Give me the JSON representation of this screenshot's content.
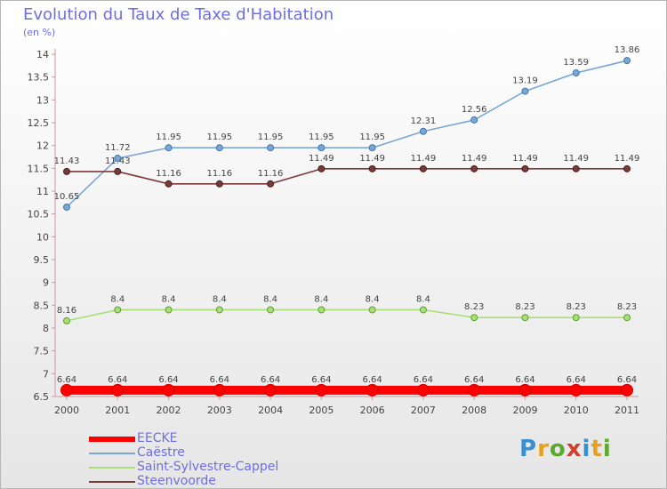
{
  "chart_data": {
    "type": "line",
    "title": "Evolution du Taux de Taxe d'Habitation",
    "subtitle": "(en %)",
    "x": [
      "2000",
      "2001",
      "2002",
      "2003",
      "2004",
      "2005",
      "2006",
      "2007",
      "2008",
      "2009",
      "2010",
      "2011"
    ],
    "ylim": [
      6.5,
      14
    ],
    "yticks": [
      "6.5",
      "7",
      "7.5",
      "8",
      "8.5",
      "9",
      "9.5",
      "10",
      "10.5",
      "11",
      "11.5",
      "12",
      "12.5",
      "13",
      "13.5",
      "14"
    ],
    "grid": false,
    "legend_position": "bottom-left",
    "series": [
      {
        "name": "EECKE",
        "color": "#ff0000",
        "values": [
          6.64,
          6.64,
          6.64,
          6.64,
          6.64,
          6.64,
          6.64,
          6.64,
          6.64,
          6.64,
          6.64,
          6.64
        ],
        "labels": [
          "6.64",
          "6.64",
          "6.64",
          "6.64",
          "6.64",
          "6.64",
          "6.64",
          "6.64",
          "6.64",
          "6.64",
          "6.64",
          "6.64"
        ]
      },
      {
        "name": "Caëstre",
        "color": "#7ba7d6",
        "values": [
          10.65,
          11.72,
          11.95,
          11.95,
          11.95,
          11.95,
          11.95,
          12.31,
          12.56,
          13.19,
          13.59,
          13.86
        ],
        "labels": [
          "10.65",
          "11.72",
          "11.95",
          "11.95",
          "11.95",
          "11.95",
          "11.95",
          "12.31",
          "12.56",
          "13.19",
          "13.59",
          "13.86"
        ]
      },
      {
        "name": "Saint-Sylvestre-Cappel",
        "color": "#a8df78",
        "values": [
          8.16,
          8.4,
          8.4,
          8.4,
          8.4,
          8.4,
          8.4,
          8.4,
          8.23,
          8.23,
          8.23,
          8.23
        ],
        "labels": [
          "8.16",
          "8.4",
          "8.4",
          "8.4",
          "8.4",
          "8.4",
          "8.4",
          "8.4",
          "8.23",
          "8.23",
          "8.23",
          "8.23"
        ]
      },
      {
        "name": "Steenvoorde",
        "color": "#7a3a3a",
        "values": [
          11.43,
          11.43,
          11.16,
          11.16,
          11.16,
          11.49,
          11.49,
          11.49,
          11.49,
          11.49,
          11.49,
          11.49
        ],
        "labels": [
          "11.43",
          "11.43",
          "11.16",
          "11.16",
          "11.16",
          "11.49",
          "11.49",
          "11.49",
          "11.49",
          "11.49",
          "11.49",
          "11.49"
        ]
      }
    ]
  },
  "logo": {
    "text": "Proxiti"
  }
}
